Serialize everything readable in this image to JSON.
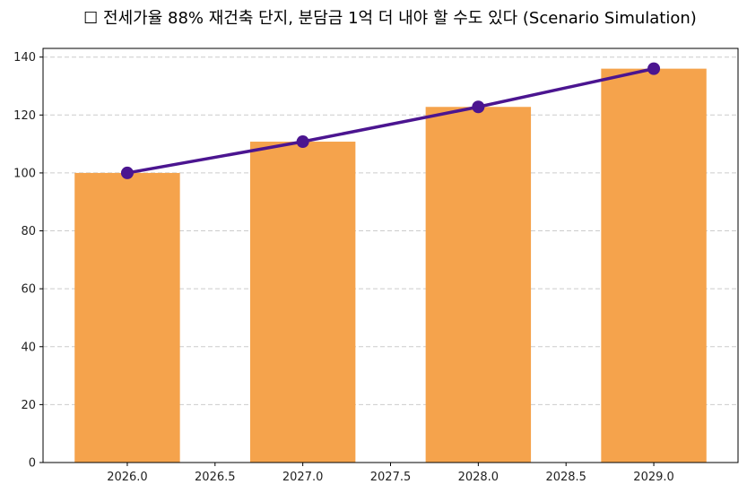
{
  "chart_data": {
    "type": "bar",
    "title": "☐ 전세가율 88% 재건축 단지, 분담금 1억 더 내야 할 수도 있다 (Scenario Simulation)",
    "xlabel": "",
    "ylabel": "",
    "x": [
      2026,
      2027,
      2028,
      2029
    ],
    "series": [
      {
        "type": "bar",
        "values": [
          100,
          110.8,
          122.8,
          136.0
        ],
        "color": "#F5A34C"
      },
      {
        "type": "line",
        "values": [
          100,
          110.8,
          122.8,
          136.0
        ],
        "color": "#4B1590",
        "marker": "circle"
      }
    ],
    "xlim": [
      2025.52,
      2029.48
    ],
    "ylim": [
      0,
      143
    ],
    "xticks": [
      "2026.0",
      "2026.5",
      "2027.0",
      "2027.5",
      "2028.0",
      "2028.5",
      "2029.0"
    ],
    "yticks": [
      "0",
      "20",
      "40",
      "60",
      "80",
      "100",
      "120",
      "140"
    ],
    "grid": "horizontal dashed",
    "legend": "none"
  }
}
